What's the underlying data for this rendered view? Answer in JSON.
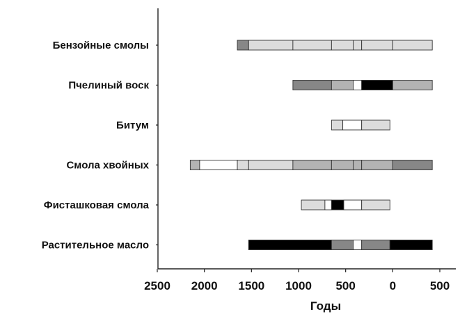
{
  "chart_data": {
    "type": "bar",
    "orientation": "horizontal-timeline",
    "title": "",
    "xlabel": "Годы",
    "ylabel": "",
    "xlim": [
      2500,
      -500
    ],
    "x_tick_values": [
      2500,
      2000,
      1500,
      1000,
      500,
      0,
      -500
    ],
    "x_tick_labels": [
      "2500",
      "2000",
      "1500",
      "1000",
      "500",
      "0",
      "500"
    ],
    "grid": false,
    "legend": "none",
    "colors": {
      "white": "#ffffff",
      "light": "#dcdcdc",
      "medium": "#b3b3b3",
      "dark": "#878787",
      "black": "#000000",
      "outline": "#333333"
    },
    "categories": [
      "Бензойные смолы",
      "Пчелиный воск",
      "Битум",
      "Смола хвойных",
      "Фисташковая смола",
      "Растительное масло"
    ],
    "series": [
      {
        "category": "Бензойные смолы",
        "segments": [
          {
            "from": 1650,
            "to": 1530,
            "shade": "dark"
          },
          {
            "from": 1530,
            "to": 1060,
            "shade": "light"
          },
          {
            "from": 1060,
            "to": 650,
            "shade": "light"
          },
          {
            "from": 650,
            "to": 420,
            "shade": "light"
          },
          {
            "from": 420,
            "to": 330,
            "shade": "light"
          },
          {
            "from": 330,
            "to": 0,
            "shade": "light"
          },
          {
            "from": 0,
            "to": -420,
            "shade": "light"
          }
        ]
      },
      {
        "category": "Пчелиный воск",
        "segments": [
          {
            "from": 1060,
            "to": 650,
            "shade": "dark"
          },
          {
            "from": 650,
            "to": 420,
            "shade": "medium"
          },
          {
            "from": 420,
            "to": 330,
            "shade": "white"
          },
          {
            "from": 330,
            "to": 0,
            "shade": "black"
          },
          {
            "from": 0,
            "to": -420,
            "shade": "medium"
          }
        ]
      },
      {
        "category": "Битум",
        "segments": [
          {
            "from": 650,
            "to": 530,
            "shade": "light"
          },
          {
            "from": 530,
            "to": 330,
            "shade": "white"
          },
          {
            "from": 330,
            "to": 30,
            "shade": "light"
          }
        ]
      },
      {
        "category": "Смола хвойных",
        "segments": [
          {
            "from": 2150,
            "to": 2050,
            "shade": "medium"
          },
          {
            "from": 2050,
            "to": 1650,
            "shade": "white"
          },
          {
            "from": 1650,
            "to": 1530,
            "shade": "light"
          },
          {
            "from": 1530,
            "to": 1060,
            "shade": "light"
          },
          {
            "from": 1060,
            "to": 650,
            "shade": "medium"
          },
          {
            "from": 650,
            "to": 420,
            "shade": "medium"
          },
          {
            "from": 420,
            "to": 330,
            "shade": "medium"
          },
          {
            "from": 330,
            "to": 0,
            "shade": "medium"
          },
          {
            "from": 0,
            "to": -420,
            "shade": "dark"
          }
        ]
      },
      {
        "category": "Фисташковая смола",
        "segments": [
          {
            "from": 970,
            "to": 720,
            "shade": "light"
          },
          {
            "from": 720,
            "to": 650,
            "shade": "white"
          },
          {
            "from": 650,
            "to": 520,
            "shade": "black"
          },
          {
            "from": 520,
            "to": 330,
            "shade": "white"
          },
          {
            "from": 330,
            "to": 30,
            "shade": "light"
          }
        ]
      },
      {
        "category": "Растительное масло",
        "segments": [
          {
            "from": 1530,
            "to": 650,
            "shade": "black"
          },
          {
            "from": 650,
            "to": 420,
            "shade": "dark"
          },
          {
            "from": 420,
            "to": 330,
            "shade": "white"
          },
          {
            "from": 330,
            "to": 30,
            "shade": "dark"
          },
          {
            "from": 30,
            "to": -420,
            "shade": "black"
          }
        ]
      }
    ]
  }
}
